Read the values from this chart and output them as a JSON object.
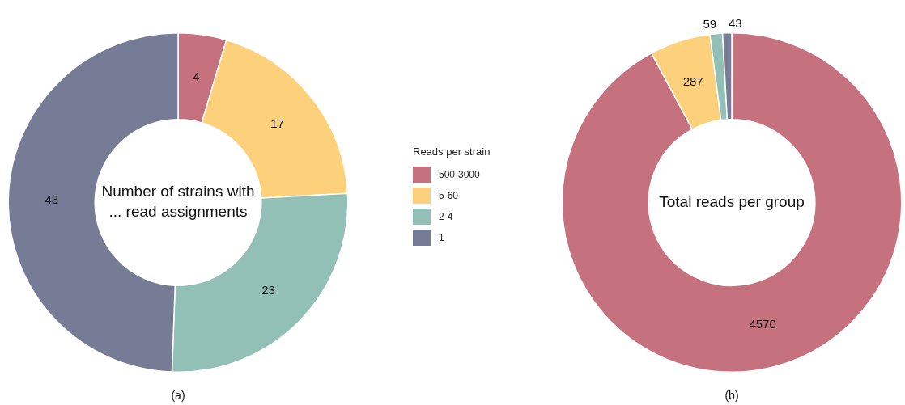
{
  "chart_data": [
    {
      "type": "donut",
      "title": "Number of strains with ... read assignments",
      "categories": [
        "500-3000",
        "5-60",
        "2-4",
        "1"
      ],
      "values": [
        4,
        17,
        23,
        43
      ],
      "colors": [
        "#c6717e",
        "#fdd17c",
        "#93c0b6",
        "#767c96"
      ],
      "data_labels": true,
      "legend": "right",
      "legend_title": "Reads per strain",
      "annotations": [
        "(a)"
      ]
    },
    {
      "type": "donut",
      "title": "Total reads per group",
      "categories": [
        null,
        null,
        null,
        null
      ],
      "values": [
        4570,
        287,
        59,
        43
      ],
      "colors": [
        "#c6717e",
        "#fdd17c",
        "#93c0b6",
        "#767c96"
      ],
      "data_labels": true,
      "annotations": [
        "(b)"
      ]
    }
  ]
}
